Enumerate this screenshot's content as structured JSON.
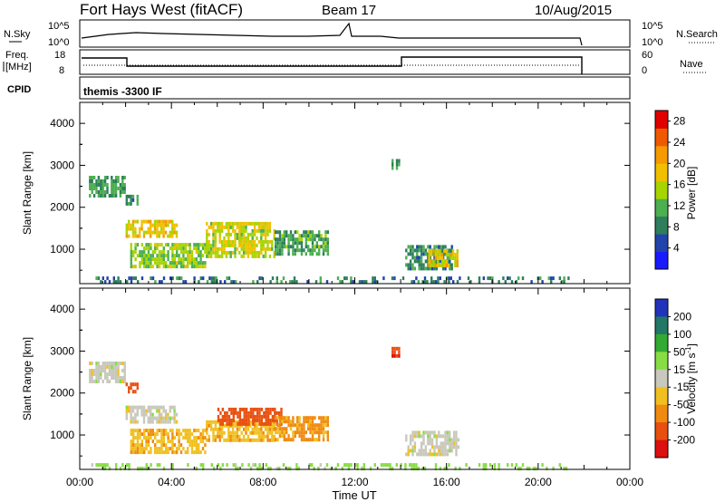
{
  "header": {
    "station": "Fort Hays West (fitACF)",
    "beam": "Beam 17",
    "date": "10/Aug/2015"
  },
  "panels": {
    "nsky": {
      "left_label": "N.Sky",
      "left_ticks": [
        "10^5",
        "10^0"
      ],
      "right_ticks": [
        "10^5",
        "10^0"
      ],
      "right_label": "N.Search"
    },
    "freq": {
      "left_label_1": "Freq.",
      "left_label_2": "[MHz]",
      "left_ticks": [
        "18",
        "8"
      ],
      "right_ticks": [
        "60",
        "0"
      ],
      "right_label": "Nave"
    },
    "cpid": {
      "label": "CPID",
      "text": "themis -3300 IF"
    }
  },
  "colors": {
    "power_scale": [
      "#1a1aff",
      "#2244aa",
      "#2e7d5b",
      "#4caf50",
      "#a8d400",
      "#f0c000",
      "#f59a00",
      "#ef5a00",
      "#e00000"
    ],
    "velocity_scale": [
      "#2233bb",
      "#227766",
      "#33aa33",
      "#88dd44",
      "#c8c8bc",
      "#f0c020",
      "#f08a10",
      "#e85010",
      "#dd1010"
    ],
    "accent_black": "#000000"
  },
  "chart_data": [
    {
      "type": "heatmap",
      "name": "power",
      "ylabel": "Slant Range [km]",
      "ylim": [
        180,
        4500
      ],
      "yticks": [
        1000,
        2000,
        3000,
        4000
      ],
      "xlim": [
        0,
        24
      ],
      "colorbar": {
        "label": "Power [dB]",
        "ticks": [
          "4",
          "8",
          "12",
          "16",
          "20",
          "24",
          "28"
        ],
        "range": [
          0,
          30
        ]
      },
      "echo_regions": [
        {
          "t0": 0.4,
          "t1": 2.0,
          "r0": 2300,
          "r1": 2750,
          "power": 10
        },
        {
          "t0": 2.0,
          "t1": 2.5,
          "r0": 2100,
          "r1": 2300,
          "power": 9
        },
        {
          "t0": 2.0,
          "t1": 4.2,
          "r0": 1300,
          "r1": 1700,
          "power": 18
        },
        {
          "t0": 2.2,
          "t1": 5.5,
          "r0": 550,
          "r1": 1150,
          "power": 14
        },
        {
          "t0": 5.5,
          "t1": 8.5,
          "r0": 850,
          "r1": 1650,
          "power": 16
        },
        {
          "t0": 8.5,
          "t1": 10.8,
          "r0": 850,
          "r1": 1450,
          "power": 11
        },
        {
          "t0": 13.6,
          "t1": 13.9,
          "r0": 2900,
          "r1": 3150,
          "power": 9
        },
        {
          "t0": 14.2,
          "t1": 16.2,
          "r0": 550,
          "r1": 1100,
          "power": 9
        },
        {
          "t0": 15.2,
          "t1": 16.5,
          "r0": 600,
          "r1": 1000,
          "power": 18
        },
        {
          "t0": 0.5,
          "t1": 21.5,
          "r0": 200,
          "r1": 350,
          "power": 8
        }
      ]
    },
    {
      "type": "heatmap",
      "name": "velocity",
      "ylabel": "Slant Range [km]",
      "xlabel": "Time UT",
      "ylim": [
        180,
        4500
      ],
      "yticks": [
        1000,
        2000,
        3000,
        4000
      ],
      "xlim": [
        0,
        24
      ],
      "xtick_labels": [
        "00:00",
        "04:00",
        "08:00",
        "12:00",
        "16:00",
        "20:00",
        "00:00"
      ],
      "colorbar": {
        "label": "Velocity [m s^-1]",
        "ticks": [
          "200",
          "100",
          "50",
          "15",
          "-15",
          "-50",
          "-100",
          "-200"
        ]
      },
      "echo_regions": [
        {
          "t0": 0.4,
          "t1": 2.0,
          "r0": 2300,
          "r1": 2750,
          "velocity": 0
        },
        {
          "t0": 2.0,
          "t1": 2.5,
          "r0": 2050,
          "r1": 2250,
          "velocity": -150
        },
        {
          "t0": 2.0,
          "t1": 4.2,
          "r0": 1300,
          "r1": 1700,
          "velocity": 0
        },
        {
          "t0": 2.2,
          "t1": 5.5,
          "r0": 550,
          "r1": 1150,
          "velocity": -40
        },
        {
          "t0": 5.5,
          "t1": 8.5,
          "r0": 850,
          "r1": 1350,
          "velocity": -40
        },
        {
          "t0": 6.0,
          "t1": 8.8,
          "r0": 1250,
          "r1": 1650,
          "velocity": -180
        },
        {
          "t0": 8.5,
          "t1": 10.8,
          "r0": 850,
          "r1": 1450,
          "velocity": -60
        },
        {
          "t0": 13.6,
          "t1": 13.9,
          "r0": 2900,
          "r1": 3100,
          "velocity": -200
        },
        {
          "t0": 14.2,
          "t1": 16.5,
          "r0": 550,
          "r1": 1100,
          "velocity": 0
        },
        {
          "t0": 0.5,
          "t1": 21.5,
          "r0": 200,
          "r1": 330,
          "velocity": 30
        }
      ]
    }
  ]
}
